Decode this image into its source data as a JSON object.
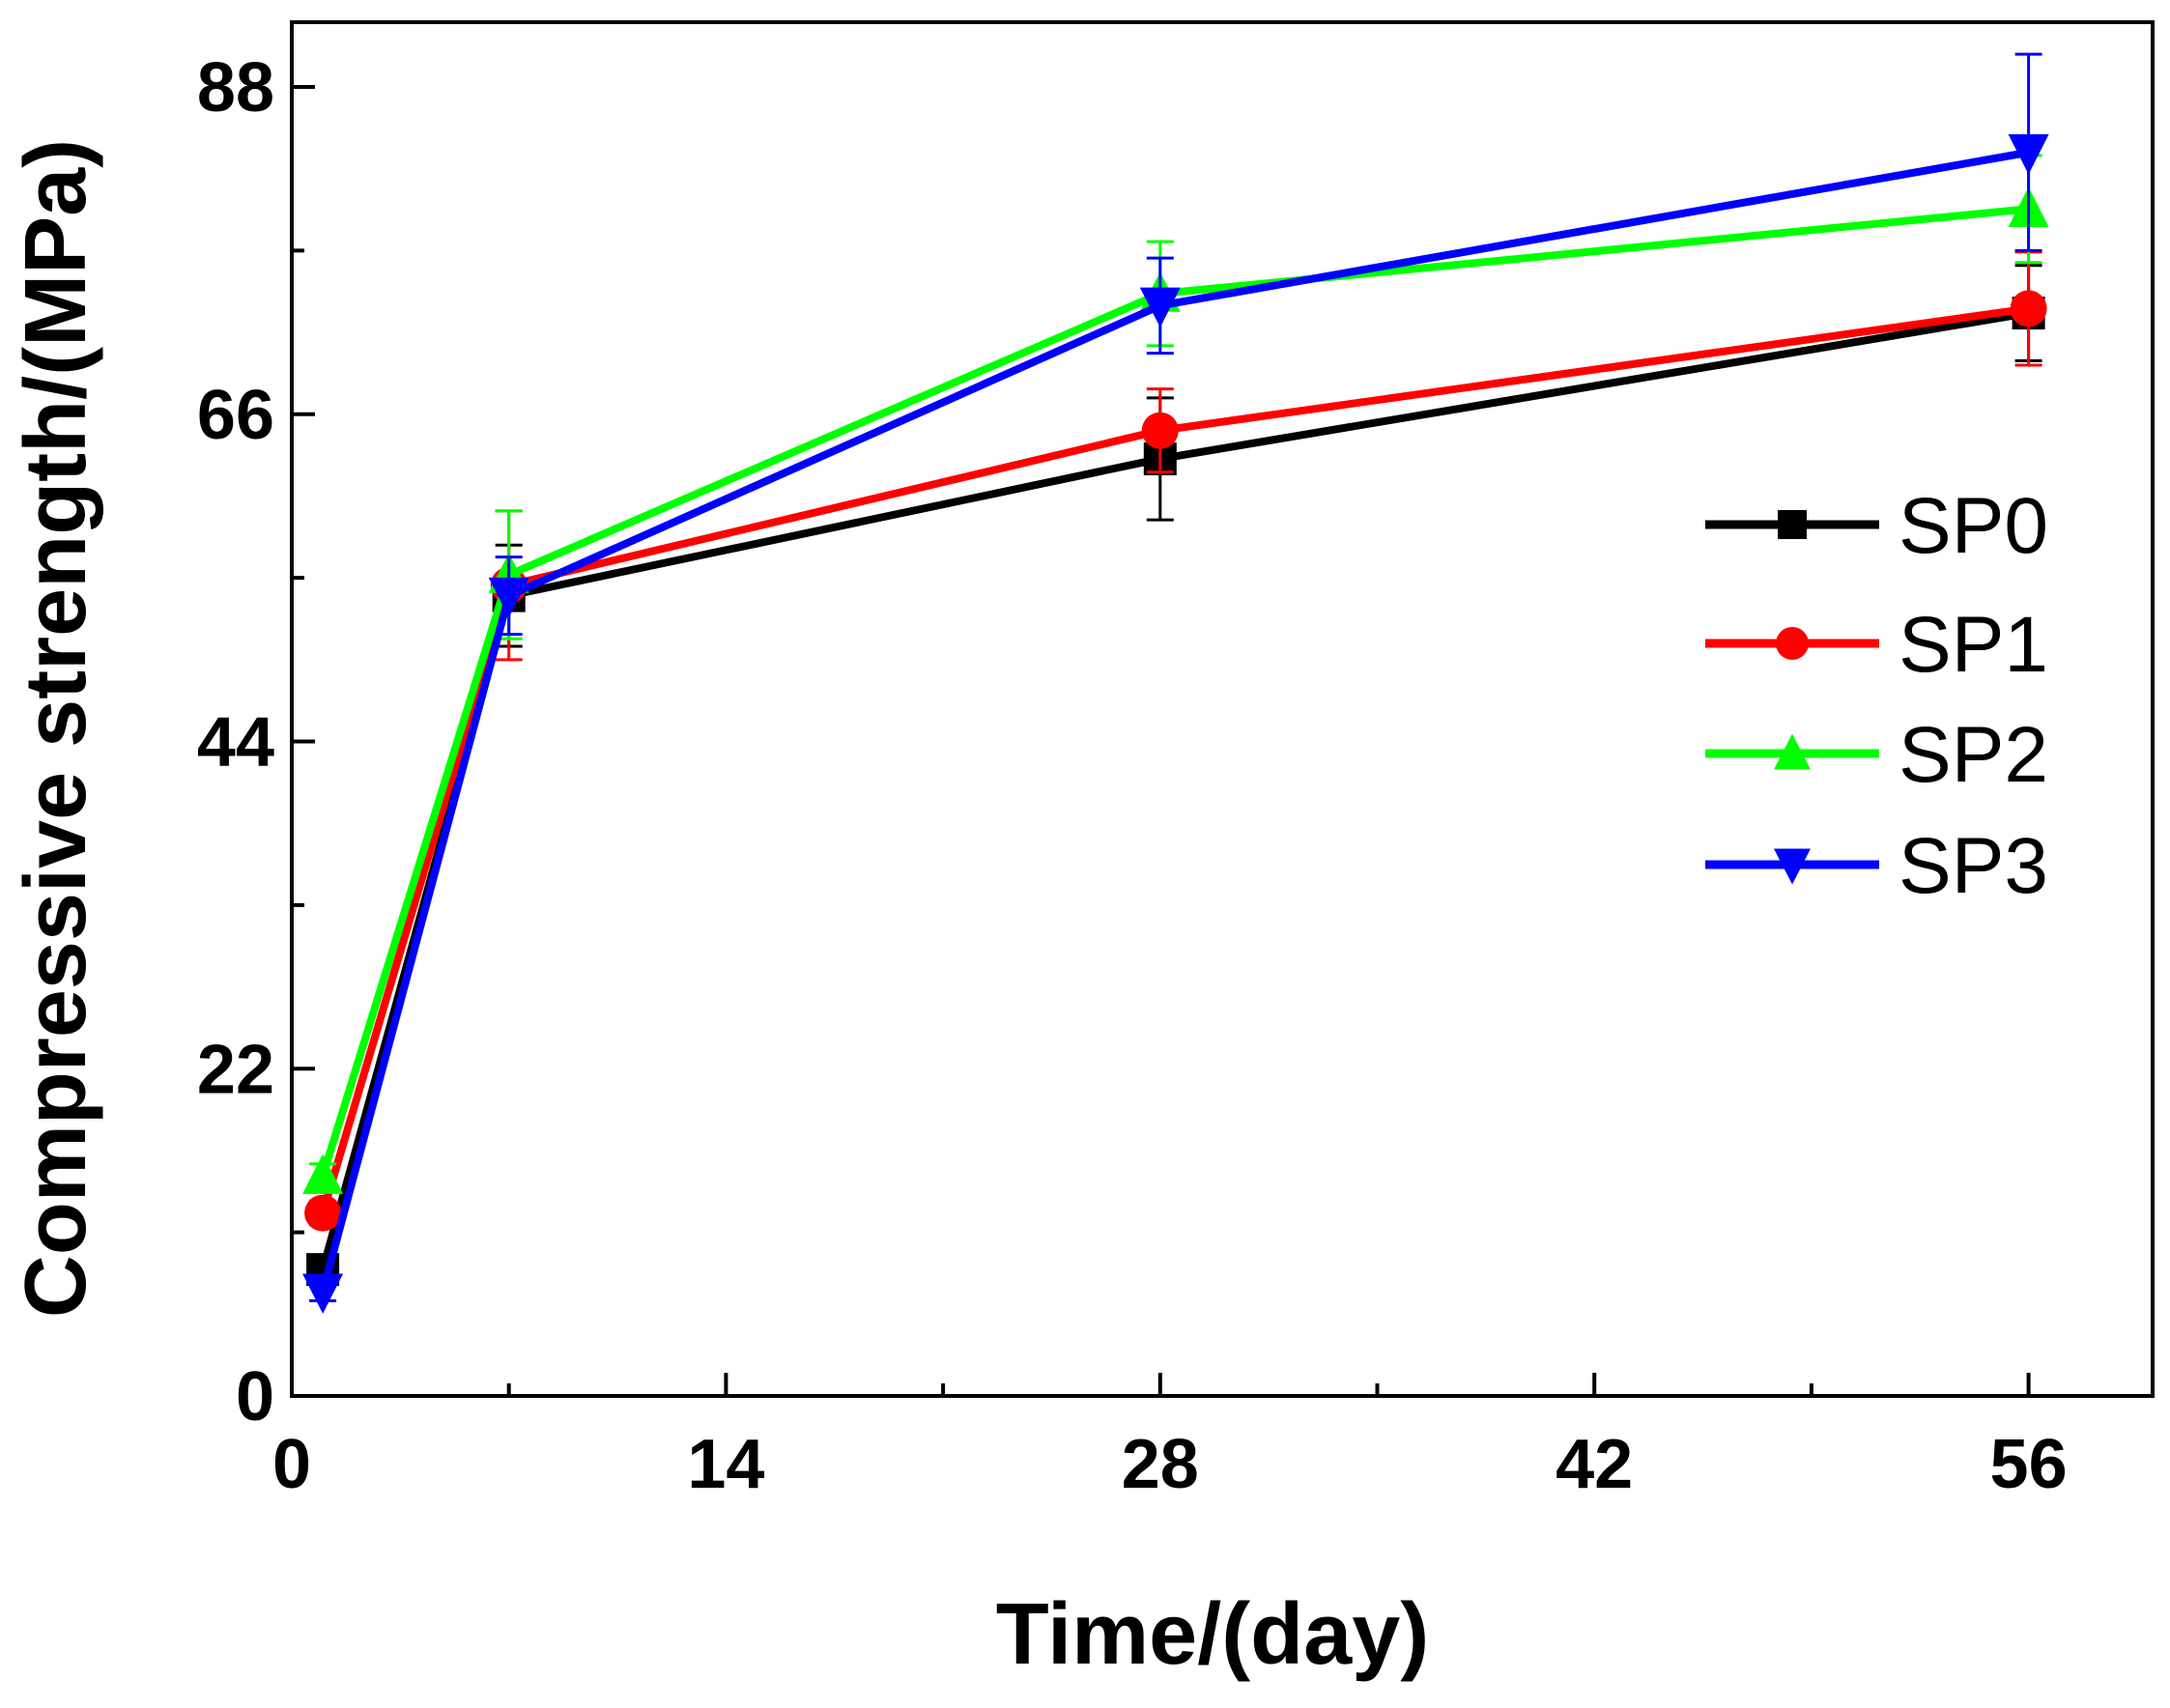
{
  "chart_data": {
    "type": "line",
    "title": "",
    "xlabel": "Time/(day)",
    "ylabel": "Compressive strength/(MPa)",
    "xlim": [
      0,
      60
    ],
    "ylim": [
      0,
      88
    ],
    "x_major_ticks": [
      0,
      14,
      28,
      42,
      56
    ],
    "x_tick_labels": [
      "0",
      "14",
      "28",
      "42",
      "56"
    ],
    "y_major_ticks": [
      0,
      22,
      44,
      66,
      88
    ],
    "y_tick_labels": [
      "0",
      "22",
      "44",
      "66",
      "88"
    ],
    "x_minor_ticks": [
      7,
      21,
      35,
      49
    ],
    "y_minor_ticks": [
      11,
      33,
      55,
      77
    ],
    "legend_position": "right",
    "x": [
      1,
      7,
      28,
      56
    ],
    "series": [
      {
        "name": "SP0",
        "color": "#000000",
        "marker": "square",
        "values": [
          8.5,
          53.8,
          63.0,
          72.8
        ],
        "errors": [
          0.8,
          3.4,
          4.1,
          3.2
        ]
      },
      {
        "name": "SP1",
        "color": "#ff0000",
        "marker": "circle",
        "values": [
          12.3,
          54.5,
          64.9,
          73.1
        ],
        "errors": [
          0.8,
          5.0,
          2.8,
          3.8
        ]
      },
      {
        "name": "SP2",
        "color": "#00ff00",
        "marker": "triangle-up",
        "values": [
          14.8,
          55.2,
          74.1,
          79.8
        ],
        "errors": [
          0.8,
          4.3,
          3.5,
          3.6
        ]
      },
      {
        "name": "SP3",
        "color": "#0000ff",
        "marker": "triangle-down",
        "values": [
          7.0,
          53.8,
          73.3,
          83.6
        ],
        "errors": [
          0.6,
          2.6,
          3.2,
          6.6
        ]
      }
    ]
  }
}
